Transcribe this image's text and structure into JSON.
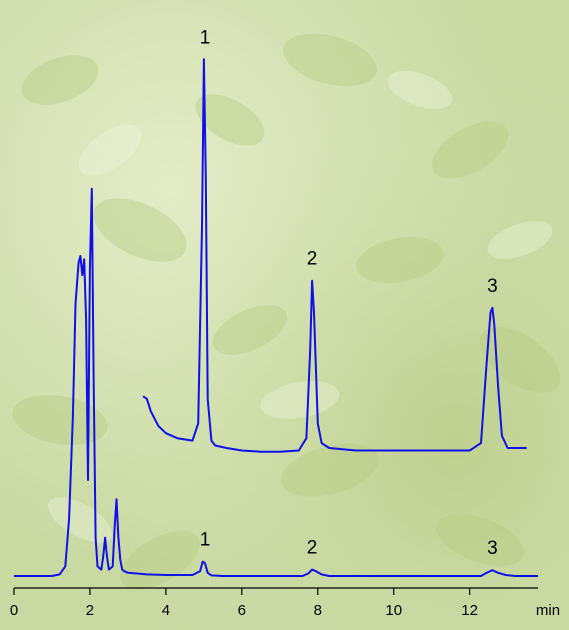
{
  "chart_data": {
    "type": "line",
    "title": "",
    "xlabel": "",
    "ylabel": "",
    "x_unit": "min",
    "xlim": [
      0,
      13.8
    ],
    "x_ticks": [
      0,
      2,
      4,
      6,
      8,
      10,
      12
    ],
    "grid": false,
    "legend": "none",
    "series": [
      {
        "trace": "lower",
        "color": "#1010e8",
        "x": [
          0,
          0.5,
          1.0,
          1.2,
          1.35,
          1.45,
          1.55,
          1.62,
          1.7,
          1.75,
          1.8,
          1.85,
          1.9,
          1.95,
          2.0,
          2.05,
          2.1,
          2.15,
          2.2,
          2.3,
          2.35,
          2.4,
          2.45,
          2.5,
          2.6,
          2.65,
          2.7,
          2.75,
          2.8,
          2.85,
          2.9,
          3.0,
          3.5,
          4.0,
          4.7,
          4.9,
          4.97,
          5.03,
          5.1,
          5.2,
          5.5,
          7.6,
          7.75,
          7.85,
          7.95,
          8.1,
          8.3,
          12.3,
          12.45,
          12.6,
          12.75,
          12.95,
          13.2,
          13.8
        ],
        "y": [
          0,
          0,
          0,
          0.5,
          3,
          18,
          50,
          85,
          98,
          100,
          94,
          99,
          80,
          30,
          96,
          121,
          60,
          12,
          3,
          2,
          6,
          12,
          6,
          2,
          3,
          15,
          24,
          12,
          5,
          2,
          1.5,
          1,
          0.5,
          0.3,
          0.3,
          1.5,
          4.5,
          4,
          1,
          0.2,
          0,
          0,
          0.8,
          2,
          1.5,
          0.5,
          0,
          0,
          1,
          1.8,
          1,
          0.3,
          0,
          0
        ]
      },
      {
        "trace": "upper",
        "color": "#1010e8",
        "x": [
          3.4,
          3.5,
          3.6,
          3.8,
          4.0,
          4.3,
          4.7,
          4.85,
          4.95,
          5.0,
          5.05,
          5.1,
          5.2,
          5.3,
          5.6,
          6.0,
          6.5,
          7.0,
          7.5,
          7.7,
          7.8,
          7.85,
          7.9,
          8.0,
          8.1,
          8.3,
          9.0,
          10.0,
          11.0,
          12.0,
          12.3,
          12.45,
          12.55,
          12.6,
          12.65,
          12.75,
          12.85,
          13.0,
          13.2,
          13.5
        ],
        "y": [
          21,
          20,
          15,
          9,
          6,
          4,
          3,
          10,
          90,
          158,
          110,
          20,
          3,
          1,
          0,
          -1,
          -1.5,
          -1.5,
          -1,
          4,
          40,
          68,
          55,
          10,
          2,
          0,
          -1,
          -1,
          -1,
          -1,
          2,
          35,
          55,
          57,
          50,
          25,
          5,
          0,
          0,
          0
        ]
      }
    ],
    "annotations": [
      {
        "text": "1",
        "trace": "upper",
        "x": 5.03
      },
      {
        "text": "2",
        "trace": "upper",
        "x": 7.85
      },
      {
        "text": "3",
        "trace": "upper",
        "x": 12.6
      },
      {
        "text": "1",
        "trace": "lower",
        "x": 5.03
      },
      {
        "text": "2",
        "trace": "lower",
        "x": 7.85
      },
      {
        "text": "3",
        "trace": "lower",
        "x": 12.6
      }
    ]
  }
}
